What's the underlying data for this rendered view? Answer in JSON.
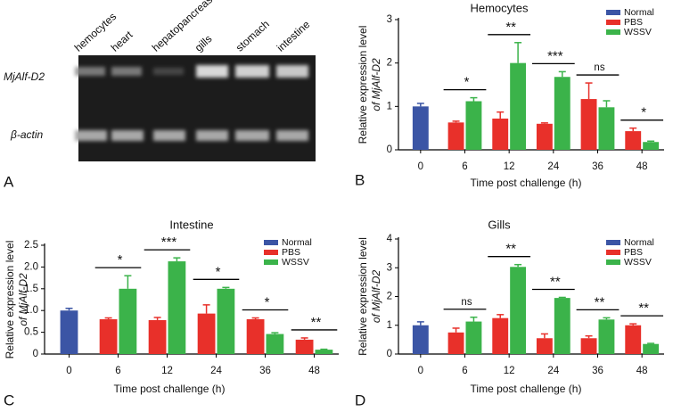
{
  "gel": {
    "panel": "A",
    "lanes": [
      "hemocytes",
      "heart",
      "hepatopancreas",
      "gills",
      "stomach",
      "intestine"
    ],
    "rows": [
      "MjAlf-D2",
      "β-actin"
    ]
  },
  "chart_data": [
    {
      "type": "bar",
      "panel": "B",
      "title": "Hemocytes",
      "xlabel": "Time post challenge (h)",
      "ylabel": [
        "Relative expression level",
        "of MjAlf-D2"
      ],
      "categories": [
        "0",
        "6",
        "12",
        "24",
        "36",
        "48"
      ],
      "ylim": [
        0,
        3
      ],
      "yticks": [
        0,
        1,
        2,
        3
      ],
      "series": [
        {
          "name": "Normal",
          "color": "#3b55a5",
          "values": [
            1.0,
            null,
            null,
            null,
            null,
            null
          ],
          "errors": [
            0.07,
            null,
            null,
            null,
            null,
            null
          ]
        },
        {
          "name": "PBS",
          "color": "#e8302a",
          "values": [
            null,
            0.63,
            0.72,
            0.6,
            1.17,
            0.43
          ],
          "errors": [
            null,
            0.03,
            0.15,
            0.02,
            0.37,
            0.07
          ]
        },
        {
          "name": "WSSV",
          "color": "#3bb34a",
          "values": [
            null,
            1.12,
            2.0,
            1.68,
            0.98,
            0.18
          ],
          "errors": [
            null,
            0.08,
            0.47,
            0.12,
            0.15,
            0.02
          ]
        }
      ],
      "annotations": [
        null,
        "*",
        "**",
        "***",
        "ns",
        "*"
      ]
    },
    {
      "type": "bar",
      "panel": "C",
      "title": "Intestine",
      "xlabel": "Time post challenge (h)",
      "ylabel": [
        "Relative expression level",
        "of MjAlf-D2"
      ],
      "categories": [
        "0",
        "6",
        "12",
        "24",
        "36",
        "48"
      ],
      "ylim": [
        0,
        2.5
      ],
      "yticks": [
        0,
        0.5,
        {
          "value": 1,
          "label": "1.0"
        },
        1.5,
        {
          "value": 2,
          "label": "2.0"
        },
        2.5
      ],
      "series": [
        {
          "name": "Normal",
          "color": "#3b55a5",
          "values": [
            1.0,
            null,
            null,
            null,
            null,
            null
          ],
          "errors": [
            0.05,
            null,
            null,
            null,
            null,
            null
          ]
        },
        {
          "name": "PBS",
          "color": "#e8302a",
          "values": [
            null,
            0.8,
            0.78,
            0.93,
            0.8,
            0.33
          ],
          "errors": [
            null,
            0.03,
            0.06,
            0.2,
            0.03,
            0.04
          ]
        },
        {
          "name": "WSSV",
          "color": "#3bb34a",
          "values": [
            null,
            1.5,
            2.13,
            1.5,
            0.46,
            0.1
          ],
          "errors": [
            null,
            0.3,
            0.08,
            0.03,
            0.03,
            0.01
          ]
        }
      ],
      "annotations": [
        null,
        "*",
        "***",
        "*",
        "*",
        "**"
      ]
    },
    {
      "type": "bar",
      "panel": "D",
      "title": "Gills",
      "xlabel": "Time post challenge (h)",
      "ylabel": [
        "Relative expression level",
        "of MjAlf-D2"
      ],
      "categories": [
        "0",
        "6",
        "12",
        "24",
        "36",
        "48"
      ],
      "ylim": [
        0,
        4
      ],
      "yticks": [
        0,
        1,
        2,
        3,
        4
      ],
      "series": [
        {
          "name": "Normal",
          "color": "#3b55a5",
          "values": [
            1.0,
            null,
            null,
            null,
            null,
            null
          ],
          "errors": [
            0.12,
            null,
            null,
            null,
            null,
            null
          ]
        },
        {
          "name": "PBS",
          "color": "#e8302a",
          "values": [
            null,
            0.75,
            1.25,
            0.55,
            0.55,
            1.0
          ],
          "errors": [
            null,
            0.15,
            0.12,
            0.15,
            0.08,
            0.05
          ]
        },
        {
          "name": "WSSV",
          "color": "#3bb34a",
          "values": [
            null,
            1.13,
            3.03,
            1.95,
            1.2,
            0.35
          ],
          "errors": [
            null,
            0.15,
            0.08,
            0.02,
            0.06,
            0.02
          ]
        }
      ],
      "annotations": [
        null,
        "ns",
        "**",
        "**",
        "**",
        "**"
      ]
    }
  ]
}
